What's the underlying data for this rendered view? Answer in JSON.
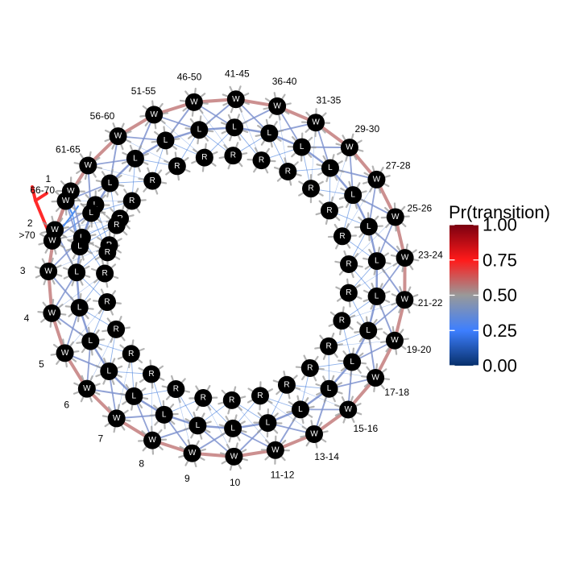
{
  "legend": {
    "title": "Pr(transition)",
    "ticks": [
      "1.00",
      "0.75",
      "0.50",
      "0.25",
      "0.00"
    ],
    "tick_values": [
      1.0,
      0.75,
      0.5,
      0.25,
      0.0
    ],
    "colors": [
      "#7a0010",
      "#ff1a1a",
      "#999999",
      "#3d7fff",
      "#08306b"
    ]
  },
  "stages": [
    "1",
    "2",
    "3",
    "4",
    "5",
    "6",
    "7",
    "8",
    "9",
    "10",
    "11-12",
    "13-14",
    "15-16",
    "17-18",
    "19-20",
    "21-22",
    "23-24",
    "25-26",
    "27-28",
    "29-30",
    "31-35",
    "36-40",
    "41-45",
    "46-50",
    "51-55",
    "56-60",
    "61-65",
    "66-70",
    ">70"
  ],
  "node_states": [
    "W",
    "L",
    "R"
  ],
  "edge_colors": {
    "win_to_win": "#c98a8a",
    "to_lose": "#7f93cf",
    "to_reset": "#2f6fd8",
    "neutral": "#9a9a9a",
    "exit_win": "#ff2a2a",
    "exit_lose": "#4f8ff0"
  }
}
